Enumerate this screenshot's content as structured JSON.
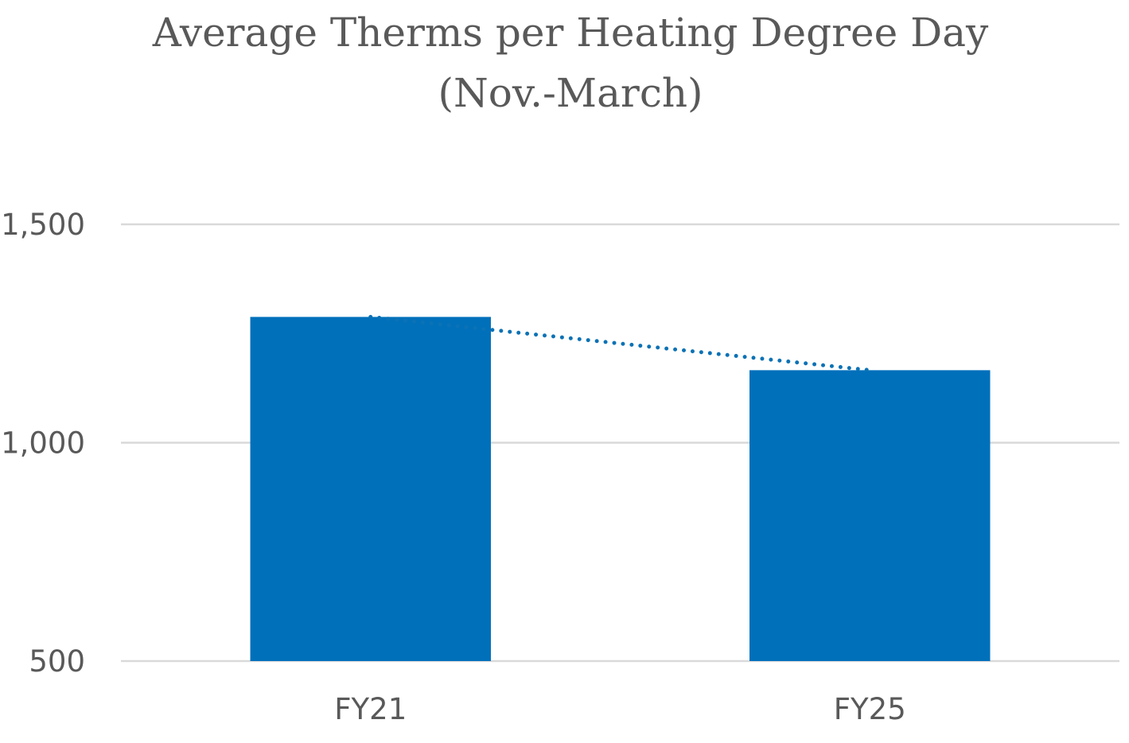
{
  "chart_data": {
    "type": "bar",
    "title_lines": [
      "Average Therms per Heating Degree Day",
      "(Nov.-March)"
    ],
    "categories": [
      "FY21",
      "FY25"
    ],
    "values": [
      1288,
      1166
    ],
    "ylim": [
      500,
      1500
    ],
    "yticks": [
      500,
      1000,
      1500
    ],
    "ytick_labels": [
      "500",
      "1,000",
      "1,500"
    ],
    "xlabel": "",
    "ylabel": "",
    "grid": true,
    "legend": "none",
    "trendline": "linear-dotted",
    "bar_color": "#0070bb",
    "trendline_color": "#0b72b5"
  }
}
